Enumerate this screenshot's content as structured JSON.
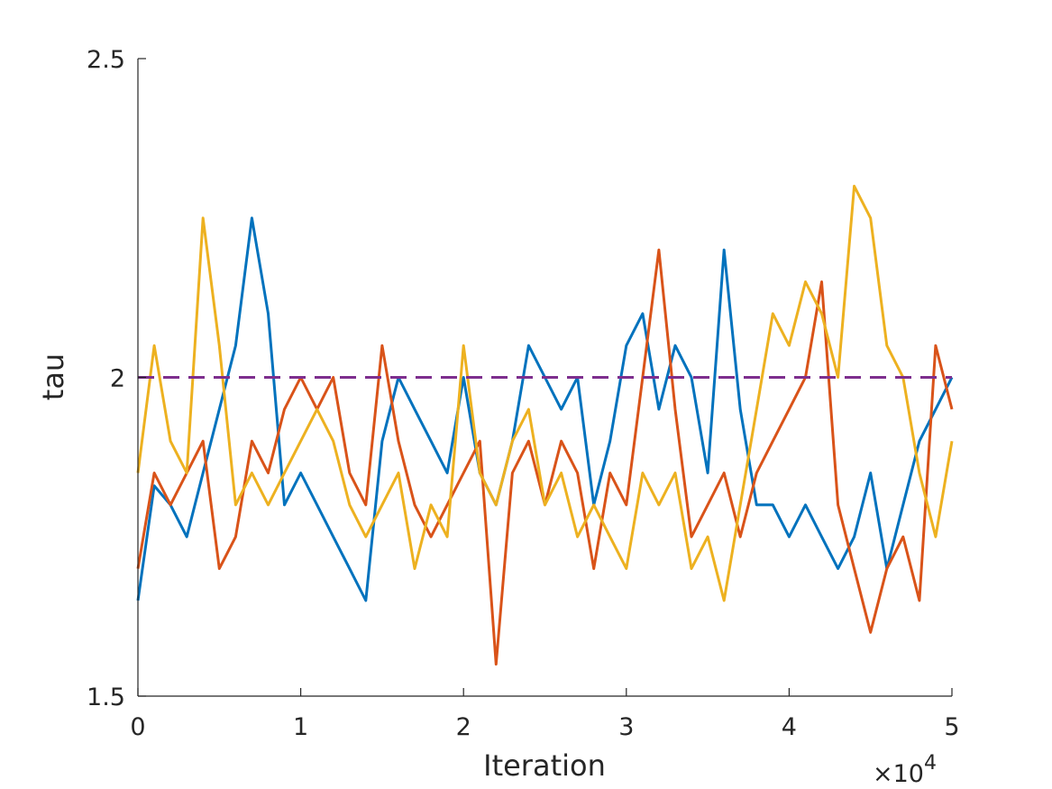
{
  "chart_data": {
    "type": "line",
    "title": "",
    "xlabel": "Iteration",
    "ylabel": "tau",
    "x_exponent_label": {
      "base": "×10",
      "power": "4"
    },
    "xlim": [
      0,
      50000
    ],
    "ylim": [
      1.5,
      2.5
    ],
    "x_tick_values": [
      0,
      10000,
      20000,
      30000,
      40000,
      50000
    ],
    "x_tick_labels": [
      "0",
      "1",
      "2",
      "3",
      "4",
      "5"
    ],
    "y_tick_values": [
      1.5,
      2,
      2.5
    ],
    "y_tick_labels": [
      "1.5",
      "2",
      "2.5"
    ],
    "grid": false,
    "legend": "none",
    "reference_line": {
      "y": 2.0,
      "style": "dashed",
      "color": "#7E2F8E"
    },
    "series": [
      {
        "color": "#0072BD",
        "x": [
          0,
          1000,
          2000,
          3000,
          4000,
          5000,
          6000,
          7000,
          8000,
          9000,
          10000,
          11000,
          12000,
          13000,
          14000,
          15000,
          16000,
          17000,
          18000,
          19000,
          20000,
          21000,
          22000,
          23000,
          24000,
          25000,
          26000,
          27000,
          28000,
          29000,
          30000,
          31000,
          32000,
          33000,
          34000,
          35000,
          36000,
          37000,
          38000,
          39000,
          40000,
          41000,
          42000,
          43000,
          44000,
          45000,
          46000,
          47000,
          48000,
          49000,
          50000
        ],
        "y": [
          1.65,
          1.83,
          1.8,
          1.75,
          1.85,
          1.95,
          2.05,
          2.25,
          2.1,
          1.8,
          1.85,
          1.8,
          1.75,
          1.7,
          1.65,
          1.9,
          2.0,
          1.95,
          1.9,
          1.85,
          2.0,
          1.85,
          1.8,
          1.9,
          2.05,
          2.0,
          1.95,
          2.0,
          1.8,
          1.9,
          2.05,
          2.1,
          1.95,
          2.05,
          2.0,
          1.85,
          2.2,
          1.95,
          1.8,
          1.8,
          1.75,
          1.8,
          1.75,
          1.7,
          1.75,
          1.85,
          1.7,
          1.8,
          1.9,
          1.95,
          2.0
        ]
      },
      {
        "color": "#D95319",
        "x": [
          0,
          1000,
          2000,
          3000,
          4000,
          5000,
          6000,
          7000,
          8000,
          9000,
          10000,
          11000,
          12000,
          13000,
          14000,
          15000,
          16000,
          17000,
          18000,
          19000,
          20000,
          21000,
          22000,
          23000,
          24000,
          25000,
          26000,
          27000,
          28000,
          29000,
          30000,
          31000,
          32000,
          33000,
          34000,
          35000,
          36000,
          37000,
          38000,
          39000,
          40000,
          41000,
          42000,
          43000,
          44000,
          45000,
          46000,
          47000,
          48000,
          49000,
          50000
        ],
        "y": [
          1.7,
          1.85,
          1.8,
          1.85,
          1.9,
          1.7,
          1.75,
          1.9,
          1.85,
          1.95,
          2.0,
          1.95,
          2.0,
          1.85,
          1.8,
          2.05,
          1.9,
          1.8,
          1.75,
          1.8,
          1.85,
          1.9,
          1.55,
          1.85,
          1.9,
          1.8,
          1.9,
          1.85,
          1.7,
          1.85,
          1.8,
          2.0,
          2.2,
          1.95,
          1.75,
          1.8,
          1.85,
          1.75,
          1.85,
          1.9,
          1.95,
          2.0,
          2.15,
          1.8,
          1.7,
          1.6,
          1.7,
          1.75,
          1.65,
          2.05,
          1.95
        ]
      },
      {
        "color": "#EDB120",
        "x": [
          0,
          1000,
          2000,
          3000,
          4000,
          5000,
          6000,
          7000,
          8000,
          9000,
          10000,
          11000,
          12000,
          13000,
          14000,
          15000,
          16000,
          17000,
          18000,
          19000,
          20000,
          21000,
          22000,
          23000,
          24000,
          25000,
          26000,
          27000,
          28000,
          29000,
          30000,
          31000,
          32000,
          33000,
          34000,
          35000,
          36000,
          37000,
          38000,
          39000,
          40000,
          41000,
          42000,
          43000,
          44000,
          45000,
          46000,
          47000,
          48000,
          49000,
          50000
        ],
        "y": [
          1.85,
          2.05,
          1.9,
          1.85,
          2.25,
          2.05,
          1.8,
          1.85,
          1.8,
          1.85,
          1.9,
          1.95,
          1.9,
          1.8,
          1.75,
          1.8,
          1.85,
          1.7,
          1.8,
          1.75,
          2.05,
          1.85,
          1.8,
          1.9,
          1.95,
          1.8,
          1.85,
          1.75,
          1.8,
          1.75,
          1.7,
          1.85,
          1.8,
          1.85,
          1.7,
          1.75,
          1.65,
          1.8,
          1.95,
          2.1,
          2.05,
          2.15,
          2.1,
          2.0,
          2.3,
          2.25,
          2.05,
          2.0,
          1.85,
          1.75,
          1.9
        ]
      }
    ]
  }
}
